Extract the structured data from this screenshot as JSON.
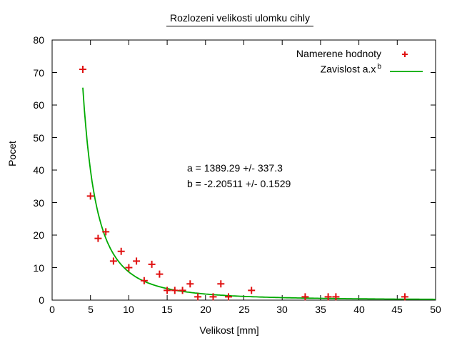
{
  "page": {
    "background": "#ffffff",
    "border_color": "#000000"
  },
  "chart_data": {
    "type": "scatter",
    "title": "Rozlozeni velikosti ulomku cihly",
    "xlabel": "Velikost [mm]",
    "ylabel": "Pocet",
    "xlim": [
      0,
      50
    ],
    "ylim": [
      0,
      80
    ],
    "xticks": [
      0,
      5,
      10,
      15,
      20,
      25,
      30,
      35,
      40,
      45,
      50
    ],
    "yticks": [
      0,
      10,
      20,
      30,
      40,
      50,
      60,
      70,
      80
    ],
    "grid": false,
    "legend_position": "top-right-inside",
    "series": [
      {
        "name": "Namerene hodnoty",
        "type": "scatter",
        "marker": "plus",
        "color": "#e01010",
        "points": [
          [
            4,
            71
          ],
          [
            5,
            32
          ],
          [
            6,
            19
          ],
          [
            7,
            21
          ],
          [
            8,
            12
          ],
          [
            9,
            15
          ],
          [
            10,
            10
          ],
          [
            11,
            12
          ],
          [
            12,
            6
          ],
          [
            13,
            11
          ],
          [
            14,
            8
          ],
          [
            15,
            3
          ],
          [
            16,
            3
          ],
          [
            17,
            3
          ],
          [
            18,
            5
          ],
          [
            19,
            1
          ],
          [
            21,
            1
          ],
          [
            22,
            5
          ],
          [
            23,
            1
          ],
          [
            26,
            3
          ],
          [
            33,
            1
          ],
          [
            36,
            1
          ],
          [
            37,
            1
          ],
          [
            46,
            1
          ]
        ]
      },
      {
        "name": "Zavislost a.x^b",
        "type": "function",
        "formula": "y = a*x^b",
        "color": "#00aa00",
        "fit_params": {
          "a": 1389.29,
          "b": -2.20511
        },
        "x_range": [
          4,
          50
        ]
      }
    ],
    "annotations": [
      "a = 1389.29 +/- 337.3",
      "b = -2.20511 +/- 0.1529"
    ]
  },
  "legend": {
    "entries": [
      {
        "label": "Namerene hodnoty",
        "marker": "plus-marker",
        "color": "#e01010"
      },
      {
        "label": "Zavislost a.x",
        "sup": "b",
        "marker": "line-sample",
        "color": "#00aa00"
      }
    ]
  }
}
